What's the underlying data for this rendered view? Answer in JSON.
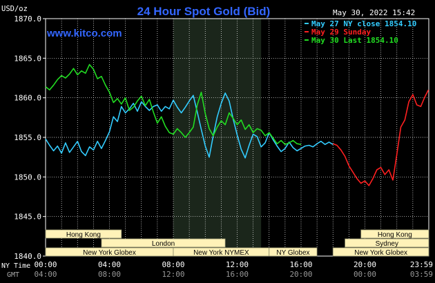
{
  "header": {
    "title": "24 Hour Spot Gold (Bid)",
    "timestamp": "May 30, 2022 15:42",
    "watermark": "www.kitco.com",
    "y_unit": "USD/oz"
  },
  "legend": [
    {
      "text": "May 27 NY close 1854.10",
      "color": "#33ccff"
    },
    {
      "text": "May 29 Sunday",
      "color": "#ff2020"
    },
    {
      "text": "May 30 Last 1854.10",
      "color": "#22dd22"
    }
  ],
  "axis_labels": {
    "x_row1_label": "NY Time",
    "x_row2_label": "GMT"
  },
  "colors": {
    "background": "#000000",
    "grid": "#ffffff",
    "title": "#3366ff",
    "watermark": "#3366ff",
    "shade": "#1b261b",
    "session_box_fill": "#fff2b8",
    "session_box_stroke": "#8a8a6a",
    "session_text": "#000000"
  },
  "sessions": [
    {
      "label": "Hong Kong",
      "row": 0,
      "start": 0,
      "end": 4.75
    },
    {
      "label": "London",
      "row": 1,
      "start": 3.5,
      "end": 11.25
    },
    {
      "label": "New York Globex",
      "row": 2,
      "start": 0,
      "end": 8.0
    },
    {
      "label": "New York NYMEX",
      "row": 2,
      "start": 8.0,
      "end": 14.0
    },
    {
      "label": "NY Globex",
      "row": 2,
      "start": 14.0,
      "end": 17.0
    },
    {
      "label": "Hong Kong",
      "row": 0,
      "start": 19.75,
      "end": 24.0
    },
    {
      "label": "Sydney",
      "row": 1,
      "start": 18.75,
      "end": 24.0
    },
    {
      "label": "New York Globex",
      "row": 2,
      "start": 18.0,
      "end": 24.0
    }
  ],
  "chart_data": {
    "type": "line",
    "title": "24 Hour Spot Gold (Bid)",
    "ylabel": "USD/oz",
    "xlim": [
      0,
      24
    ],
    "ylim": [
      1840,
      1870
    ],
    "y_ticks": [
      "1840.0",
      "1845.0",
      "1850.0",
      "1855.0",
      "1860.0",
      "1865.0",
      "1870.0"
    ],
    "x_ticks_ny": [
      "00:00",
      "04:00",
      "08:00",
      "12:00",
      "16:00",
      "20:00",
      "23:59"
    ],
    "x_ticks_gmt": [
      "04:00",
      "08:00",
      "12:00",
      "16:00",
      "20:00",
      "00:00",
      "03:59"
    ],
    "x_tick_hours": [
      0,
      4,
      8,
      12,
      16,
      20,
      23.983
    ],
    "shaded_range": [
      8.0,
      13.5
    ],
    "grid": true,
    "legend_position": "top-right",
    "series": [
      {
        "name": "May 27 NY close 1854.10",
        "color": "#33ccff",
        "points": [
          [
            0,
            1854.8
          ],
          [
            0.25,
            1854.0
          ],
          [
            0.5,
            1853.3
          ],
          [
            0.75,
            1853.9
          ],
          [
            1.0,
            1853.0
          ],
          [
            1.25,
            1854.3
          ],
          [
            1.5,
            1853.1
          ],
          [
            1.75,
            1853.8
          ],
          [
            2.0,
            1854.5
          ],
          [
            2.25,
            1853.2
          ],
          [
            2.5,
            1852.7
          ],
          [
            2.75,
            1853.8
          ],
          [
            3.0,
            1853.4
          ],
          [
            3.25,
            1854.5
          ],
          [
            3.5,
            1853.6
          ],
          [
            3.75,
            1854.6
          ],
          [
            4.0,
            1855.7
          ],
          [
            4.25,
            1857.6
          ],
          [
            4.5,
            1857.0
          ],
          [
            4.75,
            1858.9
          ],
          [
            5.0,
            1858.1
          ],
          [
            5.25,
            1858.6
          ],
          [
            5.5,
            1859.3
          ],
          [
            5.75,
            1858.3
          ],
          [
            6.0,
            1859.5
          ],
          [
            6.25,
            1858.9
          ],
          [
            6.5,
            1858.4
          ],
          [
            6.75,
            1858.9
          ],
          [
            7.0,
            1859.1
          ],
          [
            7.25,
            1858.3
          ],
          [
            7.5,
            1858.9
          ],
          [
            7.75,
            1858.6
          ],
          [
            8.0,
            1859.7
          ],
          [
            8.25,
            1858.8
          ],
          [
            8.5,
            1858.1
          ],
          [
            8.75,
            1858.8
          ],
          [
            9.0,
            1859.6
          ],
          [
            9.25,
            1860.3
          ],
          [
            9.5,
            1858.2
          ],
          [
            9.75,
            1856.0
          ],
          [
            10.0,
            1853.9
          ],
          [
            10.25,
            1852.5
          ],
          [
            10.5,
            1855.2
          ],
          [
            10.75,
            1857.6
          ],
          [
            11.0,
            1859.3
          ],
          [
            11.25,
            1860.6
          ],
          [
            11.5,
            1859.6
          ],
          [
            11.75,
            1857.3
          ],
          [
            12.0,
            1855.3
          ],
          [
            12.25,
            1853.5
          ],
          [
            12.5,
            1852.4
          ],
          [
            12.75,
            1854.0
          ],
          [
            13.0,
            1855.4
          ],
          [
            13.25,
            1855.1
          ],
          [
            13.5,
            1853.8
          ],
          [
            13.75,
            1854.3
          ],
          [
            14.0,
            1855.6
          ],
          [
            14.25,
            1854.7
          ],
          [
            14.5,
            1853.9
          ],
          [
            14.75,
            1853.2
          ],
          [
            15.0,
            1853.6
          ],
          [
            15.25,
            1854.4
          ],
          [
            15.5,
            1853.7
          ],
          [
            15.75,
            1853.3
          ],
          [
            16.0,
            1853.6
          ],
          [
            16.25,
            1853.9
          ],
          [
            16.5,
            1854.0
          ],
          [
            16.75,
            1853.8
          ],
          [
            17.0,
            1854.2
          ],
          [
            17.25,
            1854.5
          ],
          [
            17.5,
            1854.1
          ],
          [
            17.75,
            1854.4
          ],
          [
            18.0,
            1854.1
          ]
        ]
      },
      {
        "name": "May 29 Sunday",
        "color": "#ff2020",
        "points": [
          [
            18.0,
            1854.2
          ],
          [
            18.25,
            1854.0
          ],
          [
            18.5,
            1853.4
          ],
          [
            18.75,
            1852.6
          ],
          [
            19.0,
            1851.4
          ],
          [
            19.25,
            1850.6
          ],
          [
            19.5,
            1849.8
          ],
          [
            19.75,
            1849.2
          ],
          [
            20.0,
            1849.5
          ],
          [
            20.25,
            1848.9
          ],
          [
            20.5,
            1849.8
          ],
          [
            20.75,
            1850.9
          ],
          [
            21.0,
            1851.2
          ],
          [
            21.25,
            1850.3
          ],
          [
            21.5,
            1850.9
          ],
          [
            21.75,
            1849.6
          ],
          [
            22.0,
            1852.9
          ],
          [
            22.25,
            1856.3
          ],
          [
            22.5,
            1857.2
          ],
          [
            22.75,
            1859.5
          ],
          [
            23.0,
            1860.4
          ],
          [
            23.25,
            1859.1
          ],
          [
            23.5,
            1858.9
          ],
          [
            23.75,
            1860.1
          ],
          [
            23.98,
            1861.0
          ]
        ]
      },
      {
        "name": "May 30 Last 1854.10",
        "color": "#22dd22",
        "points": [
          [
            0,
            1861.4
          ],
          [
            0.25,
            1861.0
          ],
          [
            0.5,
            1861.6
          ],
          [
            0.75,
            1862.3
          ],
          [
            1.0,
            1862.8
          ],
          [
            1.25,
            1862.5
          ],
          [
            1.5,
            1863.0
          ],
          [
            1.75,
            1863.7
          ],
          [
            2.0,
            1862.9
          ],
          [
            2.25,
            1863.4
          ],
          [
            2.5,
            1863.1
          ],
          [
            2.75,
            1864.2
          ],
          [
            3.0,
            1863.6
          ],
          [
            3.25,
            1862.4
          ],
          [
            3.5,
            1862.7
          ],
          [
            3.75,
            1861.6
          ],
          [
            4.0,
            1860.7
          ],
          [
            4.25,
            1859.4
          ],
          [
            4.5,
            1859.9
          ],
          [
            4.75,
            1859.2
          ],
          [
            5.0,
            1860.0
          ],
          [
            5.25,
            1858.4
          ],
          [
            5.5,
            1858.8
          ],
          [
            5.75,
            1859.6
          ],
          [
            6.0,
            1860.2
          ],
          [
            6.25,
            1859.0
          ],
          [
            6.5,
            1859.8
          ],
          [
            6.75,
            1858.2
          ],
          [
            7.0,
            1856.8
          ],
          [
            7.25,
            1857.6
          ],
          [
            7.5,
            1856.4
          ],
          [
            7.75,
            1855.6
          ],
          [
            8.0,
            1855.4
          ],
          [
            8.25,
            1856.1
          ],
          [
            8.5,
            1855.6
          ],
          [
            8.75,
            1855.0
          ],
          [
            9.0,
            1855.6
          ],
          [
            9.25,
            1856.3
          ],
          [
            9.5,
            1859.1
          ],
          [
            9.75,
            1860.7
          ],
          [
            10.0,
            1858.0
          ],
          [
            10.25,
            1856.1
          ],
          [
            10.5,
            1855.2
          ],
          [
            10.75,
            1856.3
          ],
          [
            11.0,
            1857.1
          ],
          [
            11.25,
            1856.6
          ],
          [
            11.5,
            1858.1
          ],
          [
            11.75,
            1857.4
          ],
          [
            12.0,
            1856.6
          ],
          [
            12.25,
            1857.2
          ],
          [
            12.5,
            1856.0
          ],
          [
            12.75,
            1856.6
          ],
          [
            13.0,
            1855.6
          ],
          [
            13.25,
            1856.1
          ],
          [
            13.5,
            1855.9
          ],
          [
            13.75,
            1855.2
          ],
          [
            14.0,
            1855.6
          ],
          [
            14.25,
            1854.9
          ],
          [
            14.5,
            1854.2
          ],
          [
            14.75,
            1854.6
          ],
          [
            15.0,
            1854.1
          ],
          [
            15.25,
            1854.3
          ],
          [
            15.5,
            1854.6
          ],
          [
            15.75,
            1854.2
          ],
          [
            16.0,
            1854.1
          ]
        ]
      }
    ]
  }
}
